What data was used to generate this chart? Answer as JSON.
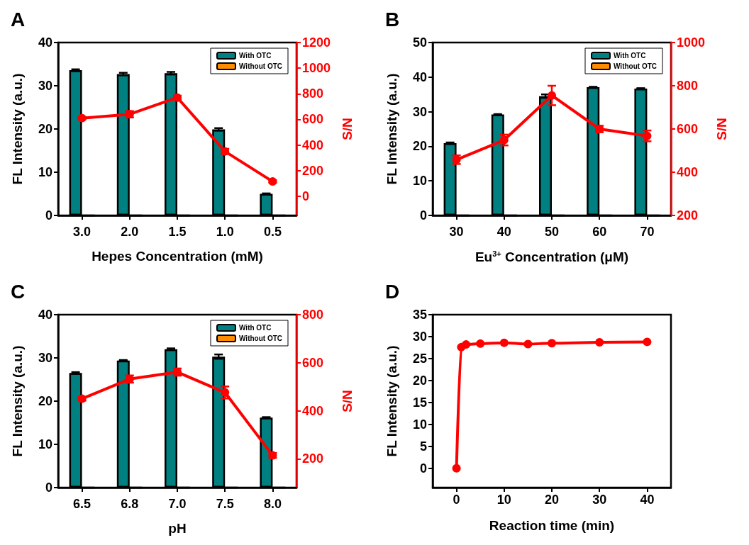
{
  "chart_data": [
    {
      "type": "bar",
      "title": "A",
      "categories": [
        "3.0",
        "2.0",
        "1.5",
        "1.0",
        "0.5"
      ],
      "xlabel": "Hepes Concentration (mM)",
      "ylabel": "FL Intensity (a.u.)",
      "y2label": "S/N",
      "ylim": [
        0,
        40
      ],
      "yticks": [
        0,
        10,
        20,
        30,
        40
      ],
      "y2lim": [
        -150,
        1200
      ],
      "y2ticks": [
        0,
        200,
        400,
        600,
        800,
        1000,
        1200
      ],
      "legend": "top right",
      "marker": "circle",
      "series": [
        {
          "name": "With OTC",
          "color": "#008080",
          "values": [
            33.6,
            32.7,
            32.9,
            19.9,
            5.0
          ],
          "errors": [
            0.2,
            0.3,
            0.3,
            0.3,
            0.1
          ]
        },
        {
          "name": "Without OTC",
          "color": "#ff8c00",
          "values": [
            0,
            0,
            0,
            0,
            0
          ]
        },
        {
          "type": "line",
          "axis": "y2",
          "color": "#ff0000",
          "values": [
            610,
            640,
            770,
            350,
            115
          ],
          "errors": [
            10,
            25,
            15,
            20,
            10
          ]
        }
      ]
    },
    {
      "type": "bar",
      "title": "B",
      "categories": [
        "30",
        "40",
        "50",
        "60",
        "70"
      ],
      "xlabel": "Eu$^{3+}$ Concentration (μM)",
      "ylabel": "FL Intensity (a.u.)",
      "y2label": "S/N",
      "ylim": [
        0,
        50
      ],
      "yticks": [
        0,
        10,
        20,
        30,
        40,
        50
      ],
      "y2lim": [
        200,
        1000
      ],
      "y2ticks": [
        200,
        400,
        600,
        800,
        1000
      ],
      "legend": "top right",
      "marker": "circle",
      "series": [
        {
          "name": "With OTC",
          "color": "#008080",
          "values": [
            20.9,
            29.2,
            34.5,
            37.1,
            36.7
          ],
          "errors": [
            0.2,
            0.1,
            0.5,
            0.1,
            0.1
          ]
        },
        {
          "name": "Without OTC",
          "color": "#ff8c00",
          "values": [
            0,
            0,
            0,
            0,
            0
          ]
        },
        {
          "type": "line",
          "axis": "y2",
          "color": "#ff0000",
          "values": [
            458,
            549,
            755,
            600,
            568
          ],
          "errors": [
            20,
            25,
            45,
            15,
            25
          ]
        }
      ]
    },
    {
      "type": "bar",
      "title": "C",
      "categories": [
        "6.5",
        "6.8",
        "7.0",
        "7.5",
        "8.0"
      ],
      "xlabel": "pH",
      "ylabel": "FL Intensity (a.u.)",
      "y2label": "S/N",
      "ylim": [
        0,
        40
      ],
      "yticks": [
        0,
        10,
        20,
        30,
        40
      ],
      "y2lim": [
        80,
        800
      ],
      "y2ticks": [
        200,
        400,
        600,
        800
      ],
      "legend": "top right",
      "marker": "circle",
      "series": [
        {
          "name": "With OTC",
          "color": "#008080",
          "values": [
            26.5,
            29.4,
            32.0,
            30.3,
            16.2
          ],
          "errors": [
            0.2,
            0.1,
            0.2,
            0.5,
            0.1
          ]
        },
        {
          "name": "Without OTC",
          "color": "#ff8c00",
          "values": [
            0,
            0,
            0,
            0,
            0
          ]
        },
        {
          "type": "line",
          "axis": "y2",
          "color": "#ff0000",
          "values": [
            450,
            532,
            561,
            476,
            214
          ],
          "errors": [
            8,
            15,
            15,
            25,
            10
          ]
        }
      ]
    },
    {
      "type": "line",
      "title": "D",
      "x": [
        0,
        1,
        2,
        5,
        10,
        15,
        20,
        30,
        40
      ],
      "values": [
        0,
        27.6,
        28.2,
        28.4,
        28.6,
        28.3,
        28.5,
        28.7,
        28.8
      ],
      "color": "#ff0000",
      "marker": "circle",
      "xlabel": "Reaction time (min)",
      "ylabel": "FL Intensity (a.u.)",
      "xlim": [
        -5,
        45
      ],
      "xticks": [
        0,
        10,
        20,
        30,
        40
      ],
      "ylim": [
        -4.4,
        35
      ],
      "yticks": [
        0,
        5,
        10,
        15,
        20,
        25,
        30,
        35
      ]
    }
  ]
}
